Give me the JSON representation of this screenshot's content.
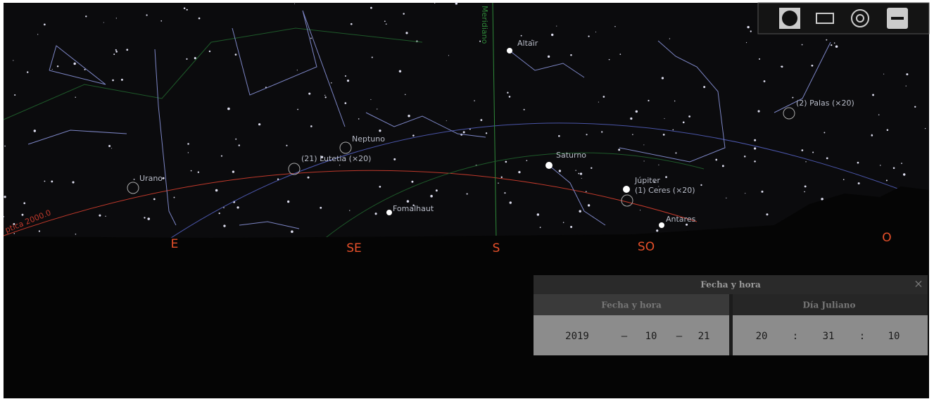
{
  "sky_labels": {
    "altair": "Altair",
    "neptune": "Neptuno",
    "lutetia": "(21) Lutetia (×20)",
    "uranus": "Urano",
    "saturn": "Saturno",
    "jupiter": "Júpiter",
    "ceres": "(1) Ceres (×20)",
    "pallas": "(2) Palas (×20)",
    "fomalhaut": "Fomalhaut",
    "antares": "Antares",
    "meridian": "Meridiano",
    "ecliptic": "ptica 2000.0"
  },
  "cardinals": [
    "E",
    "SE",
    "S",
    "SO",
    "O"
  ],
  "dialog": {
    "title": "Fecha y hora",
    "tabs": [
      "Fecha y hora",
      "Día Juliano"
    ],
    "date": {
      "year": "2019",
      "month": "10",
      "day": "21",
      "separator": "–"
    },
    "time": {
      "hour": "20",
      "minute": "31",
      "second": "10",
      "separator": ":"
    }
  }
}
